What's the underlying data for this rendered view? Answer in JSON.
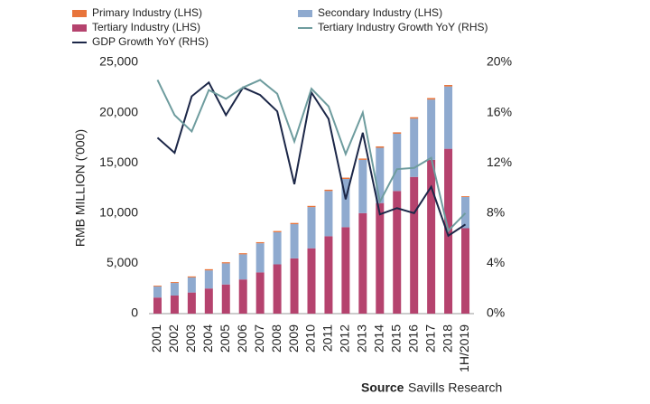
{
  "chart_data": {
    "type": "combo",
    "y_label": "RMB MILLION ('000)",
    "source_label": "Source",
    "source_text": "Savills Research",
    "categories": [
      "2001",
      "2002",
      "2003",
      "2004",
      "2005",
      "2006",
      "2007",
      "2008",
      "2009",
      "2010",
      "2011",
      "2012",
      "2013",
      "2014",
      "2015",
      "2016",
      "2017",
      "2018",
      "1H/2019"
    ],
    "ylim": [
      0,
      25000
    ],
    "yticks": [
      0,
      {
        "value": 5000,
        "label": "5,000"
      },
      {
        "value": 10000,
        "label": "10,000"
      },
      {
        "value": 15000,
        "label": "15,000"
      },
      {
        "value": 20000,
        "label": "20,000"
      },
      {
        "value": 25000,
        "label": "25,000"
      }
    ],
    "y2lim": [
      0,
      20
    ],
    "y2ticks": [
      {
        "value": 0,
        "label": "0%"
      },
      {
        "value": 4,
        "label": "4%"
      },
      {
        "value": 8,
        "label": "8%"
      },
      {
        "value": 12,
        "label": "12%"
      },
      {
        "value": 16,
        "label": "16%"
      },
      {
        "value": 20,
        "label": "20%"
      }
    ],
    "grid": false,
    "series": [
      {
        "name": "Primary Industry (LHS)",
        "type": "bar",
        "color": "#e8743b",
        "values": [
          80,
          90,
          100,
          120,
          110,
          110,
          110,
          120,
          120,
          120,
          130,
          130,
          130,
          140,
          140,
          140,
          150,
          150,
          80
        ]
      },
      {
        "name": "Secondary Industry (LHS)",
        "type": "bar",
        "color": "#8faacf",
        "values": [
          1100,
          1250,
          1500,
          1800,
          2100,
          2500,
          2900,
          3200,
          3400,
          4100,
          4500,
          4800,
          5300,
          5500,
          5700,
          5800,
          6000,
          6200,
          3100
        ]
      },
      {
        "name": "Tertiary Industry (LHS)",
        "type": "bar",
        "color": "#b5436e",
        "values": [
          1600,
          1800,
          2100,
          2500,
          2900,
          3400,
          4100,
          4900,
          5500,
          6500,
          7700,
          8600,
          10000,
          11000,
          12200,
          13600,
          15300,
          16400,
          8500
        ]
      },
      {
        "name": "GDP Growth YoY (RHS)",
        "type": "line",
        "axis": "y2",
        "color": "#1c2748",
        "values": [
          14.0,
          12.8,
          17.3,
          18.4,
          15.8,
          18.0,
          17.4,
          16.1,
          10.3,
          17.6,
          15.5,
          9.1,
          14.4,
          7.9,
          8.4,
          8.0,
          10.1,
          6.2,
          7.1
        ]
      },
      {
        "name": "Tertiary Industry Growth YoY (RHS)",
        "type": "line",
        "axis": "y2",
        "color": "#6e9c9e",
        "values": [
          18.6,
          15.8,
          14.5,
          17.8,
          17.1,
          18.0,
          18.6,
          17.5,
          13.7,
          17.9,
          16.5,
          12.7,
          16.0,
          8.9,
          11.5,
          11.6,
          12.4,
          6.6,
          8.0
        ]
      }
    ]
  }
}
